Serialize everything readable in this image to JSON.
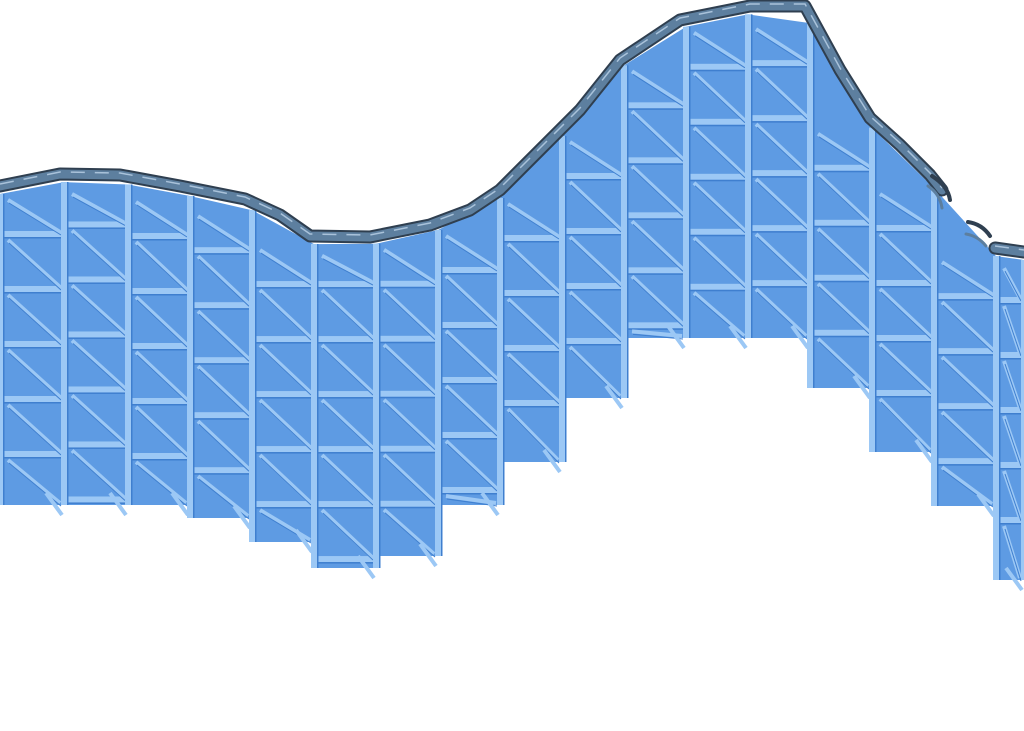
{
  "scene": {
    "background_color": "#ffffff",
    "structure": {
      "name": "wooden-coaster-lattice",
      "fill_color": "#5e9be3",
      "beam_color": "#9cc8f5",
      "beam_shadow_color": "#3f7fcf"
    },
    "track": {
      "name": "coaster-track-rail",
      "rail_color": "#5d7f9f",
      "rail_outline_color": "#2f3f50",
      "rail_highlight_color": "#a9c2da"
    },
    "gap": {
      "name": "broken-track-gap"
    }
  }
}
